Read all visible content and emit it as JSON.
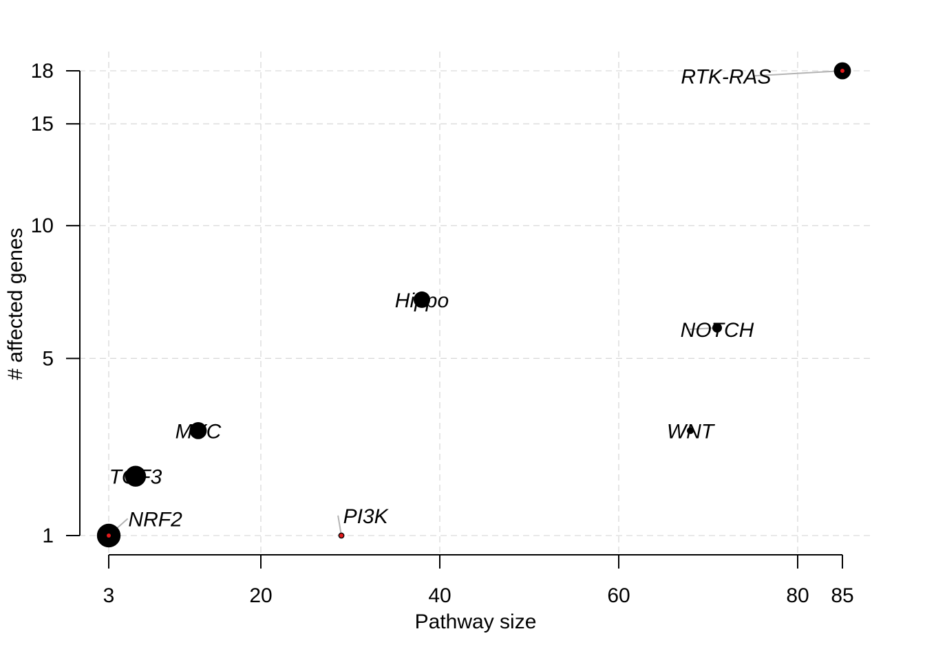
{
  "chart_data": {
    "type": "scatter",
    "xlabel": "Pathway size",
    "ylabel": "# affected genes",
    "xlim": [
      3,
      85
    ],
    "ylim": [
      1,
      18
    ],
    "x_ticks": [
      3,
      20,
      40,
      60,
      80,
      85
    ],
    "y_ticks": [
      1,
      5,
      10,
      15,
      18
    ],
    "grid": true,
    "point_color": "#000000",
    "center_dot_color": "#e41a1c",
    "points": [
      {
        "label": "RTK-RAS",
        "x": 85,
        "y": 18,
        "size": 12.4,
        "center_dot": true,
        "label_x": 72,
        "label_y": 17.7
      },
      {
        "label": "Hippo",
        "x": 38,
        "y": 7,
        "size": 12,
        "center_dot": false,
        "label_x": 38,
        "label_y": 7
      },
      {
        "label": "NOTCH",
        "x": 71,
        "y": 6,
        "size": 7,
        "center_dot": false,
        "label_x": 71,
        "label_y": 5.95
      },
      {
        "label": "WNT",
        "x": 68,
        "y": 3,
        "size": 5,
        "center_dot": false,
        "label_x": 68,
        "label_y": 3
      },
      {
        "label": "MYC",
        "x": 13,
        "y": 3,
        "size": 12.4,
        "center_dot": false,
        "label_x": 13,
        "label_y": 3
      },
      {
        "label": "TGF3",
        "x": 6,
        "y": 2,
        "size": 15.2,
        "center_dot": false,
        "label_x": 6,
        "label_y": 2
      },
      {
        "label": "NRF2",
        "x": 3,
        "y": 1,
        "size": 17.2,
        "center_dot": true,
        "label_x": 8.2,
        "label_y": 1.25
      },
      {
        "label": "PI3K",
        "x": 29,
        "y": 1,
        "size": 4.4,
        "center_dot": true,
        "label_x": 31.7,
        "label_y": 1.3
      }
    ]
  }
}
